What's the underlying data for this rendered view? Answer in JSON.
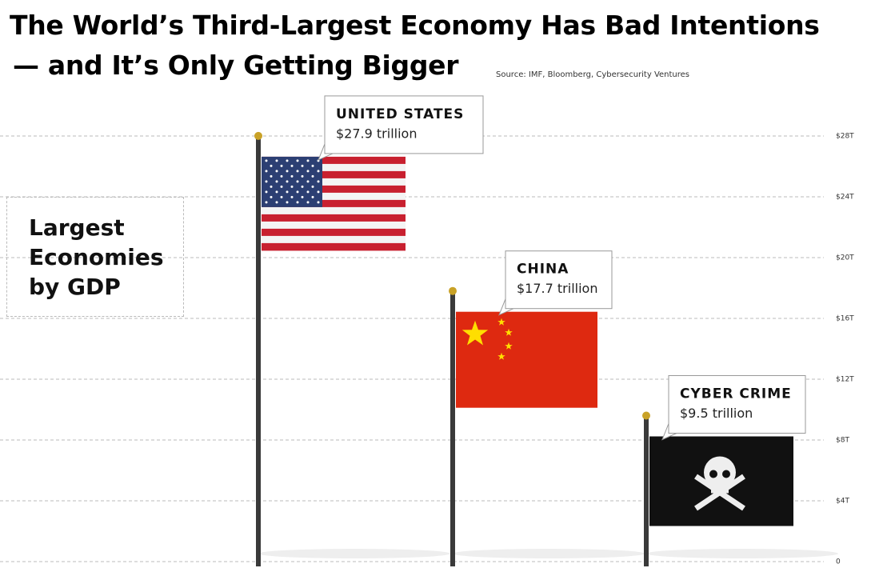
{
  "chart_data": {
    "type": "bar",
    "title_lines": [
      "The World’s Third-Largest  Economy Has Bad Intentions",
      "— and It’s Only Getting Bigger"
    ],
    "source": "Source: IMF, Bloomberg, Cybersecurity Ventures",
    "annotation": "Largest Economies by GDP",
    "categories": [
      "UNITED STATES",
      "CHINA",
      "CYBER CRIME"
    ],
    "values": [
      27.9,
      17.7,
      9.5
    ],
    "value_labels": [
      "$27.9 trillion",
      "$17.7 trillion",
      "$9.5 trillion"
    ],
    "color": "#3a3a3a",
    "ylim": [
      0,
      28
    ],
    "yticks": [
      0,
      {
        "value": 4,
        "label": "$4T"
      },
      {
        "value": 8,
        "label": "$8T"
      },
      {
        "value": 12,
        "label": "$12T"
      },
      {
        "value": 16,
        "label": "$16T"
      },
      {
        "value": 20,
        "label": "$20T"
      },
      {
        "value": 24,
        "label": "$24T"
      },
      {
        "value": 28,
        "label": "$28T"
      }
    ],
    "grid": true
  }
}
